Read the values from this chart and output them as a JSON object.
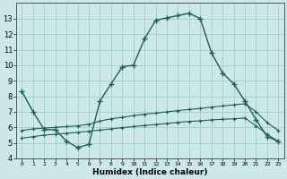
{
  "xlabel": "Humidex (Indice chaleur)",
  "bg_color": "#cce8e8",
  "grid_color": "#aacfcf",
  "line_color": "#1e5f52",
  "curve1_x": [
    0,
    1,
    2,
    3,
    4,
    5,
    6,
    7,
    8,
    9,
    10,
    11,
    12,
    13,
    14,
    15,
    16,
    17,
    18,
    19,
    20,
    21,
    22,
    23
  ],
  "curve1_y": [
    8.3,
    7.0,
    5.85,
    5.85,
    5.1,
    4.7,
    4.9,
    7.7,
    8.8,
    9.9,
    10.0,
    11.7,
    12.9,
    13.05,
    13.2,
    13.35,
    13.0,
    10.8,
    9.5,
    8.8,
    7.7,
    6.5,
    5.4,
    5.1
  ],
  "curve2_x": [
    0,
    1,
    2,
    3,
    4,
    5,
    6,
    7,
    8,
    9,
    10,
    11,
    12,
    13,
    14,
    15,
    16,
    17,
    18,
    19,
    20,
    21,
    22,
    23
  ],
  "curve2_y": [
    5.8,
    5.9,
    5.95,
    6.0,
    6.05,
    6.1,
    6.2,
    6.4,
    6.55,
    6.65,
    6.75,
    6.85,
    6.92,
    7.0,
    7.08,
    7.15,
    7.22,
    7.3,
    7.38,
    7.45,
    7.52,
    7.0,
    6.3,
    5.8
  ],
  "curve3_x": [
    0,
    1,
    2,
    3,
    4,
    5,
    6,
    7,
    8,
    9,
    10,
    11,
    12,
    13,
    14,
    15,
    16,
    17,
    18,
    19,
    20,
    21,
    22,
    23
  ],
  "curve3_y": [
    5.3,
    5.4,
    5.5,
    5.55,
    5.62,
    5.68,
    5.75,
    5.82,
    5.9,
    5.98,
    6.05,
    6.12,
    6.18,
    6.25,
    6.32,
    6.38,
    6.42,
    6.48,
    6.52,
    6.55,
    6.6,
    6.1,
    5.55,
    5.1
  ],
  "ylim": [
    4,
    14
  ],
  "yticks": [
    4,
    5,
    6,
    7,
    8,
    9,
    10,
    11,
    12,
    13
  ],
  "xlim": [
    -0.5,
    23.5
  ],
  "xticks": [
    0,
    1,
    2,
    3,
    4,
    5,
    6,
    7,
    8,
    9,
    10,
    11,
    12,
    13,
    14,
    15,
    16,
    17,
    18,
    19,
    20,
    21,
    22,
    23
  ]
}
